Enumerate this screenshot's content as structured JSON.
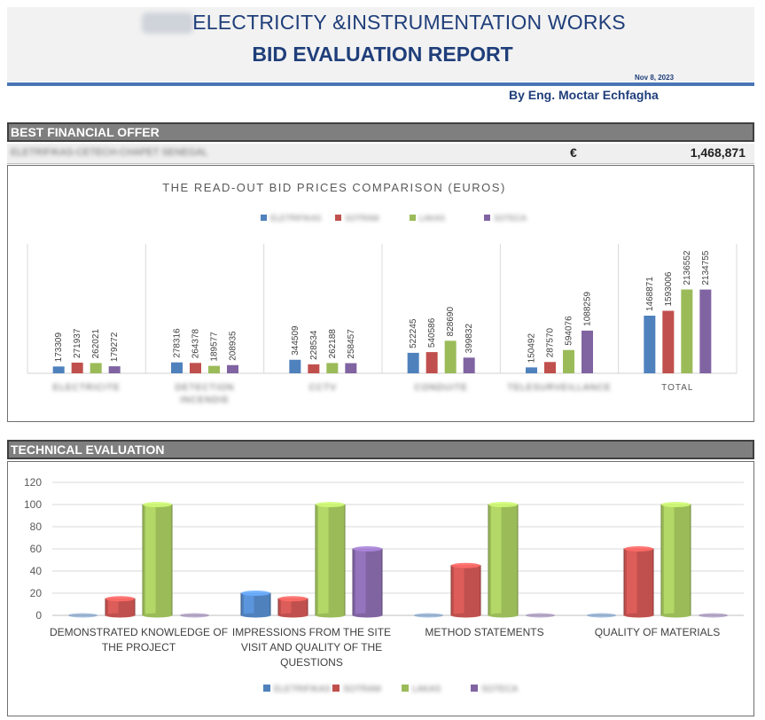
{
  "header": {
    "title_line1": "ELECTRICITY &INSTRUMENTATION WORKS",
    "title_line2": "BID EVALUATION REPORT",
    "date": "Nov 8, 2023",
    "author": "By Eng. Moctar Echfagha"
  },
  "financial": {
    "section_title": "BEST FINANCIAL OFFER",
    "bidder": "ELETRIFIKAS-CETECH-CHAPET SENEGAL",
    "currency": "€",
    "amount": "1,468,871"
  },
  "technical": {
    "section_title": "TECHNICAL EVALUATION"
  },
  "colors": {
    "blue": "#4f81bd",
    "red": "#c0504d",
    "green": "#9bbb59",
    "purple": "#8064a2",
    "title_navy": "#1f3e7a"
  },
  "chart_data": [
    {
      "type": "bar",
      "title": "THE READ-OUT BID PRICES COMPARISON (EUROS)",
      "categories": [
        "ELECTRICITE",
        "DETECTION INCENDIE",
        "CCTV",
        "CONDUITE",
        "TELESURVEILLANCE",
        "TOTAL"
      ],
      "category_lines": [
        [
          "ELECTRICITE"
        ],
        [
          "DETECTION",
          "INCENDIE"
        ],
        [
          "CCTV"
        ],
        [
          "CONDUITE"
        ],
        [
          "TELESURVEILLANCE"
        ],
        [
          "TOTAL"
        ]
      ],
      "blurred_categories": [
        true,
        true,
        true,
        true,
        true,
        false
      ],
      "legend_placement": "top-center",
      "grid": false,
      "series": [
        {
          "name": "ELETRIFIKAS",
          "color": "#4f81bd",
          "values": [
            173309,
            278316,
            344509,
            522245,
            150492,
            1468871
          ]
        },
        {
          "name": "SOTRAM",
          "color": "#c0504d",
          "values": [
            271937,
            264378,
            228534,
            540586,
            287570,
            1593006
          ]
        },
        {
          "name": "LAKAS",
          "color": "#9bbb59",
          "values": [
            262021,
            189577,
            262188,
            828690,
            594076,
            2136552
          ]
        },
        {
          "name": "SOTECA",
          "color": "#8064a2",
          "values": [
            179272,
            208935,
            258457,
            399832,
            1088259,
            2134755
          ]
        }
      ],
      "ylim": [
        0,
        3300000
      ]
    },
    {
      "type": "bar",
      "categories": [
        "DEMONSTRATED KNOWLEDGE OF THE PROJECT",
        "IMPRESSIONS FROM THE SITE VISIT AND QUALITY OF THE QUESTIONS",
        "METHOD STATEMENTS",
        "QUALITY OF MATERIALS"
      ],
      "category_lines": [
        [
          "DEMONSTRATED KNOWLEDGE OF",
          "THE PROJECT"
        ],
        [
          "IMPRESSIONS FROM THE SITE",
          "VISIT AND QUALITY OF THE",
          "QUESTIONS"
        ],
        [
          "METHOD STATEMENTS"
        ],
        [
          "QUALITY OF MATERIALS"
        ]
      ],
      "legend_placement": "bottom-center",
      "grid": true,
      "yticks": [
        "0",
        "20",
        "40",
        "60",
        "80",
        "100",
        "120"
      ],
      "ylim": [
        0,
        120
      ],
      "series": [
        {
          "name": "ELETRIFIKAS",
          "color": "#4f81bd",
          "values": [
            0,
            20,
            0,
            0
          ]
        },
        {
          "name": "SOTRAM",
          "color": "#c0504d",
          "values": [
            15,
            15,
            45,
            60
          ]
        },
        {
          "name": "LAKAS",
          "color": "#9bbb59",
          "values": [
            100,
            100,
            100,
            100
          ]
        },
        {
          "name": "SOTECA",
          "color": "#8064a2",
          "values": [
            0,
            60,
            0,
            0
          ]
        }
      ]
    }
  ]
}
